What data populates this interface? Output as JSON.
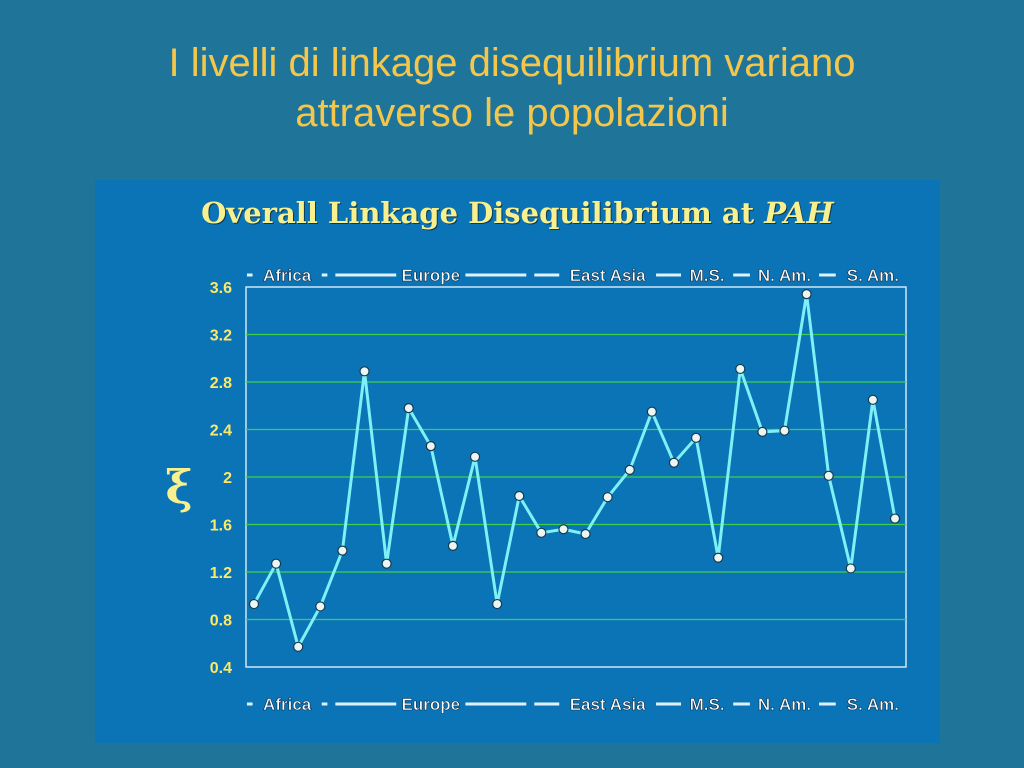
{
  "slide": {
    "title_line1": "I livelli di linkage disequilibrium variano",
    "title_line2": "attraverso le popolazioni"
  },
  "colors": {
    "background": "#1f7499",
    "title": "#f4c64a",
    "panel": "#0a74b6",
    "chart_title": "#f8ef8e",
    "line": "#7ff0f5",
    "grid": "#3fd04a",
    "tick_labels": "#ffe866",
    "region_labels": "#ffffff"
  },
  "chart_data": {
    "type": "line",
    "title_main": "Overall Linkage Disequilibrium at ",
    "title_italic": "PAH",
    "ylabel": "ξ",
    "ylim": [
      0.4,
      3.6
    ],
    "yticks": [
      "3.6",
      "3.2",
      "2.8",
      "2.4",
      "2",
      "1.6",
      "1.2",
      "0.8",
      "0.4"
    ],
    "grid": true,
    "regions": [
      {
        "label": "Africa",
        "start": 1,
        "end": 4
      },
      {
        "label": "Europe",
        "start": 5,
        "end": 13
      },
      {
        "label": "East Asia",
        "start": 14,
        "end": 20
      },
      {
        "label": "M.S.",
        "start": 21,
        "end": 22
      },
      {
        "label": "N. Am.",
        "start": 23,
        "end": 27
      },
      {
        "label": "S. Am.",
        "start": 28,
        "end": 30
      }
    ],
    "series": [
      {
        "values": [
          0.93,
          1.27,
          0.57,
          0.91,
          1.38,
          2.89,
          1.27,
          2.58,
          2.26,
          1.42,
          2.17,
          0.93,
          1.84,
          1.53,
          1.56,
          1.52,
          1.83,
          2.06,
          2.55,
          2.12,
          2.33,
          1.32,
          2.91,
          2.38,
          2.39,
          3.54,
          2.01,
          1.23,
          2.65,
          1.65
        ]
      }
    ]
  }
}
